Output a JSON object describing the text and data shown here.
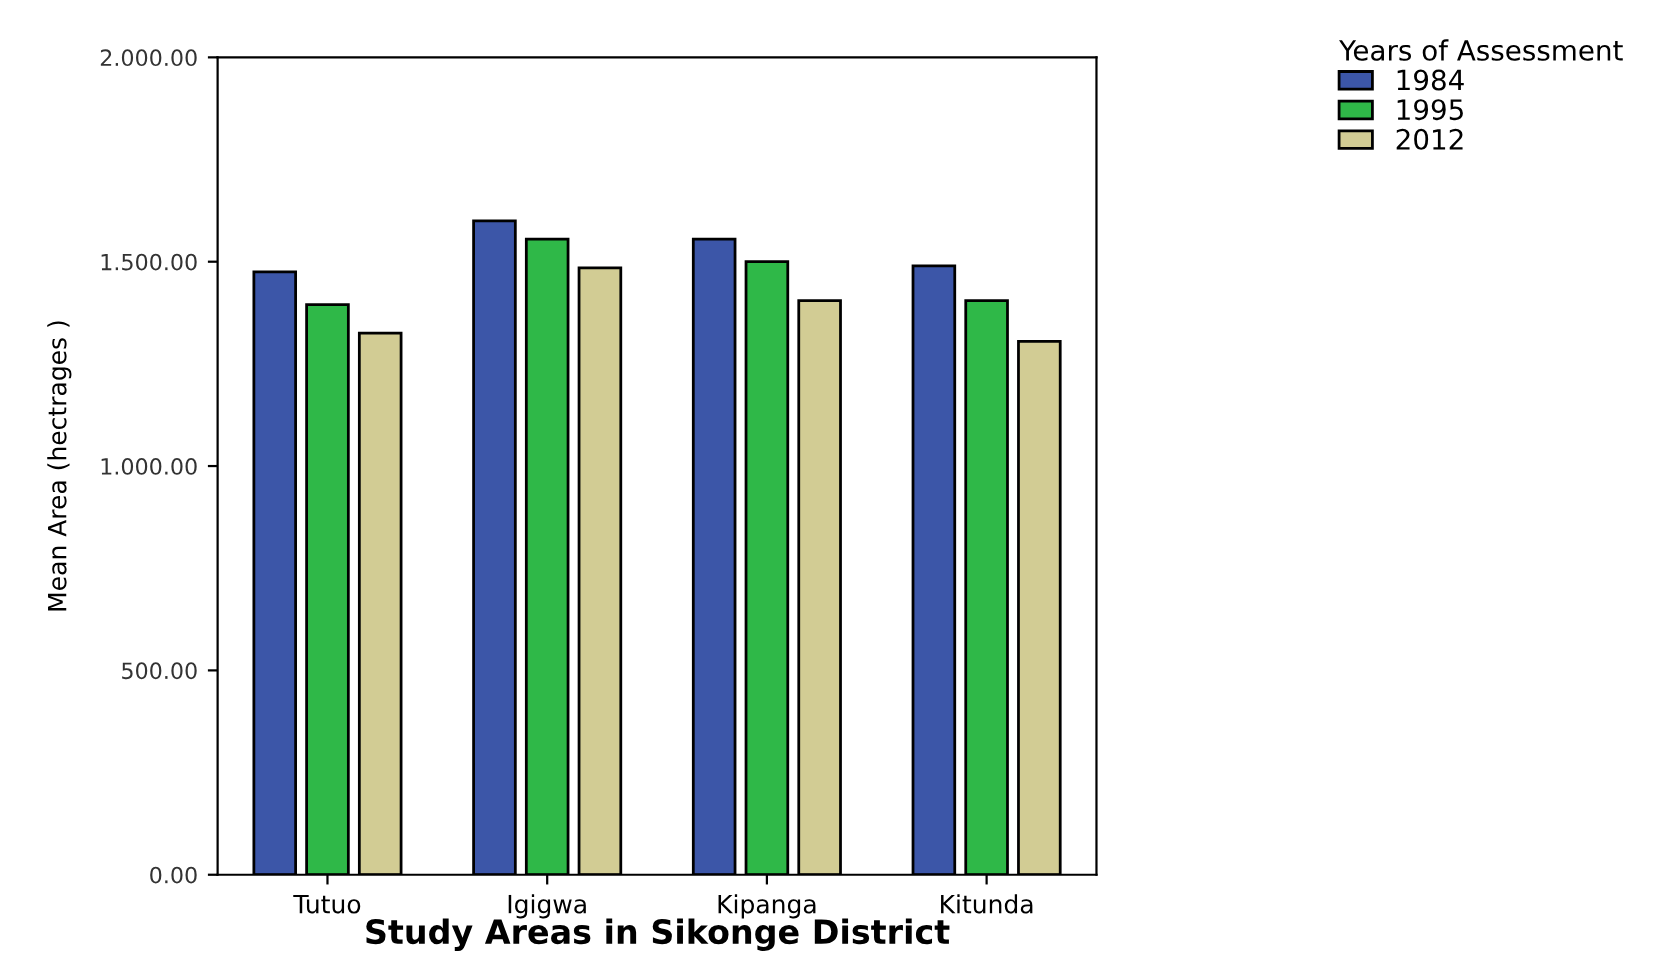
{
  "chart_data": {
    "type": "bar",
    "xlabel": "Study Areas in Sikonge District",
    "ylabel": "Mean Area (hectrages )",
    "legend_title": "Years of Assessment",
    "categories": [
      "Tutuo",
      "Igigwa",
      "Kipanga",
      "Kitunda"
    ],
    "series": [
      {
        "name": "1984",
        "color": "#3c56a8",
        "values": [
          1475,
          1600,
          1555,
          1490
        ]
      },
      {
        "name": "1995",
        "color": "#2fb848",
        "values": [
          1395,
          1555,
          1500,
          1405
        ]
      },
      {
        "name": "2012",
        "color": "#d2cc94",
        "values": [
          1325,
          1485,
          1405,
          1305
        ]
      }
    ],
    "ylim": [
      0,
      2000
    ],
    "yticks": [
      {
        "value": 0,
        "label": "0.00"
      },
      {
        "value": 500,
        "label": "500.00"
      },
      {
        "value": 1000,
        "label": "1.000.00"
      },
      {
        "value": 1500,
        "label": "1.500.00"
      },
      {
        "value": 2000,
        "label": "2.000.00"
      }
    ],
    "grid": false,
    "legend": "top right"
  }
}
